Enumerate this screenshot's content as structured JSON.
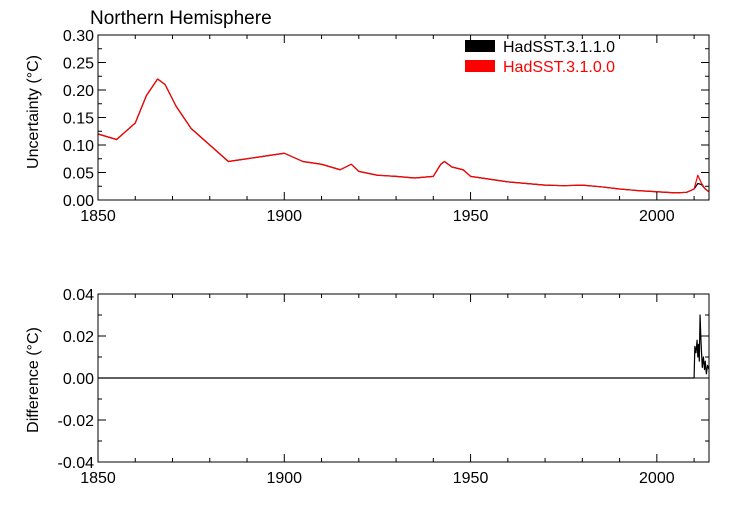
{
  "chart_data": [
    {
      "type": "line",
      "title": "Northern Hemisphere",
      "xlabel": "",
      "ylabel": "Uncertainty (°C)",
      "xlim": [
        1850,
        2014
      ],
      "ylim": [
        0.0,
        0.3
      ],
      "x_ticks": [
        1850,
        1900,
        1950,
        2000
      ],
      "x_tick_labels": [
        "1850",
        "1900",
        "1950",
        "2000"
      ],
      "y_ticks": [
        0.0,
        0.05,
        0.1,
        0.15,
        0.2,
        0.25,
        0.3
      ],
      "y_tick_labels": [
        "0.00",
        "0.05",
        "0.10",
        "0.15",
        "0.20",
        "0.25",
        "0.30"
      ],
      "grid": false,
      "legend_position": "top-right",
      "series": [
        {
          "name": "HadSST.3.1.1.0",
          "color": "#000000",
          "x": [
            1850,
            1855,
            1860,
            1863,
            1866,
            1868,
            1871,
            1875,
            1880,
            1885,
            1890,
            1895,
            1900,
            1905,
            1910,
            1915,
            1918,
            1920,
            1925,
            1930,
            1935,
            1940,
            1942,
            1943,
            1945,
            1948,
            1950,
            1955,
            1960,
            1965,
            1970,
            1975,
            1980,
            1985,
            1990,
            1995,
            2000,
            2005,
            2008,
            2010,
            2011,
            2012,
            2013,
            2014
          ],
          "values": [
            0.12,
            0.11,
            0.14,
            0.19,
            0.22,
            0.21,
            0.17,
            0.13,
            0.1,
            0.07,
            0.075,
            0.08,
            0.085,
            0.07,
            0.065,
            0.055,
            0.065,
            0.052,
            0.045,
            0.043,
            0.04,
            0.043,
            0.065,
            0.07,
            0.06,
            0.055,
            0.043,
            0.038,
            0.033,
            0.03,
            0.027,
            0.026,
            0.027,
            0.024,
            0.02,
            0.017,
            0.015,
            0.013,
            0.014,
            0.02,
            0.03,
            0.028,
            0.02,
            0.015
          ]
        },
        {
          "name": "HadSST.3.1.0.0",
          "color": "#ff0000",
          "x": [
            1850,
            1855,
            1860,
            1863,
            1866,
            1868,
            1871,
            1875,
            1880,
            1885,
            1890,
            1895,
            1900,
            1905,
            1910,
            1915,
            1918,
            1920,
            1925,
            1930,
            1935,
            1940,
            1942,
            1943,
            1945,
            1948,
            1950,
            1955,
            1960,
            1965,
            1970,
            1975,
            1980,
            1985,
            1990,
            1995,
            2000,
            2005,
            2008,
            2010,
            2011,
            2012,
            2013,
            2014
          ],
          "values": [
            0.12,
            0.11,
            0.14,
            0.19,
            0.22,
            0.21,
            0.17,
            0.13,
            0.1,
            0.07,
            0.075,
            0.08,
            0.085,
            0.07,
            0.065,
            0.055,
            0.065,
            0.052,
            0.045,
            0.043,
            0.04,
            0.043,
            0.065,
            0.07,
            0.06,
            0.055,
            0.043,
            0.038,
            0.033,
            0.03,
            0.027,
            0.026,
            0.027,
            0.024,
            0.02,
            0.017,
            0.015,
            0.013,
            0.014,
            0.02,
            0.045,
            0.03,
            0.02,
            0.015
          ]
        }
      ]
    },
    {
      "type": "line",
      "title": "",
      "xlabel": "",
      "ylabel": "Difference (°C)",
      "xlim": [
        1850,
        2014
      ],
      "ylim": [
        -0.04,
        0.04
      ],
      "x_ticks": [
        1850,
        1900,
        1950,
        2000
      ],
      "x_tick_labels": [
        "1850",
        "1900",
        "1950",
        "2000"
      ],
      "y_ticks": [
        -0.04,
        -0.02,
        0.0,
        0.02,
        0.04
      ],
      "y_tick_labels": [
        "-0.04",
        "-0.02",
        "0.00",
        "0.02",
        "0.04"
      ],
      "grid": false,
      "series": [
        {
          "color": "#000000",
          "x": [
            1850,
            2010.0,
            2010.2,
            2010.5,
            2010.8,
            2011.0,
            2011.2,
            2011.4,
            2011.6,
            2011.8,
            2012.0,
            2012.2,
            2012.5,
            2012.8,
            2013.0,
            2013.3,
            2013.6,
            2014.0
          ],
          "values": [
            0.0,
            0.0,
            0.015,
            0.012,
            0.018,
            0.01,
            0.016,
            0.008,
            0.03,
            0.02,
            0.012,
            0.005,
            0.01,
            0.004,
            0.008,
            0.002,
            0.006,
            0.004
          ]
        }
      ]
    }
  ]
}
